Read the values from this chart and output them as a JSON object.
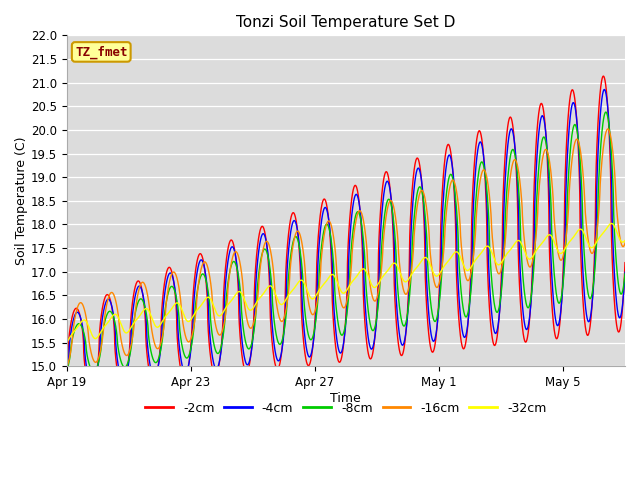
{
  "title": "Tonzi Soil Temperature Set D",
  "xlabel": "Time",
  "ylabel": "Soil Temperature (C)",
  "ylim": [
    15.0,
    22.0
  ],
  "yticks": [
    15.0,
    15.5,
    16.0,
    16.5,
    17.0,
    17.5,
    18.0,
    18.5,
    19.0,
    19.5,
    20.0,
    20.5,
    21.0,
    21.5,
    22.0
  ],
  "xtick_labels": [
    "Apr 19",
    "Apr 23",
    "Apr 27",
    "May 1",
    "May 5"
  ],
  "xtick_positions": [
    0,
    4,
    8,
    12,
    16
  ],
  "series_colors": [
    "#ff0000",
    "#0000ff",
    "#00cc00",
    "#ff8800",
    "#ffff00"
  ],
  "series_labels": [
    "-2cm",
    "-4cm",
    "-8cm",
    "-16cm",
    "-32cm"
  ],
  "line_width": 1.0,
  "label_box_color": "#ffff99",
  "label_box_text": "TZ_fmet",
  "label_box_text_color": "#880000",
  "n_days": 18
}
